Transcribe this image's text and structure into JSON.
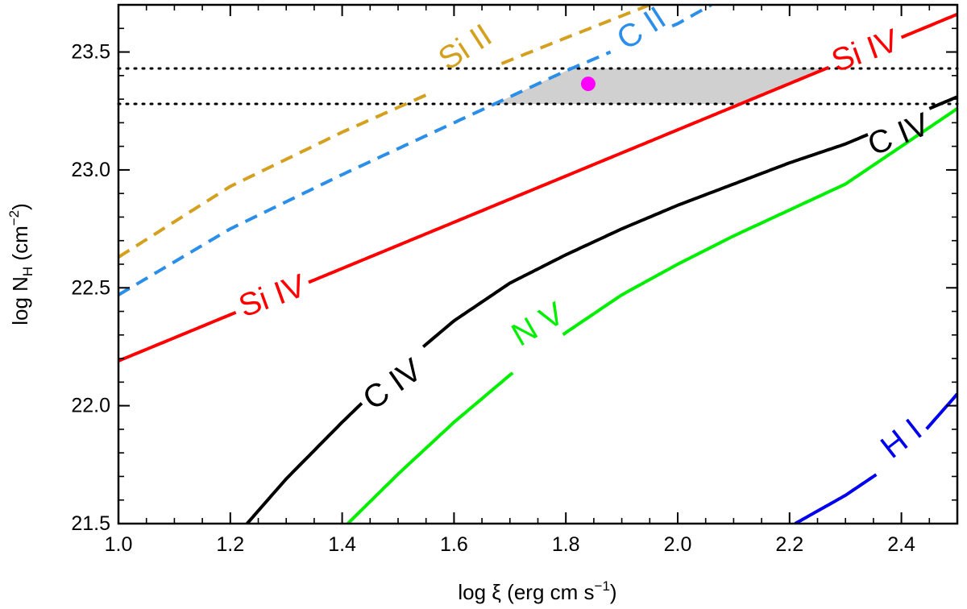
{
  "chart_data": {
    "type": "line",
    "xlabel": "log ξ (erg cm s",
    "xlabel_sup": "−1",
    "xlabel_end": ")",
    "ylabel_main": "log N",
    "ylabel_sub": "H",
    "ylabel_mid": " (cm",
    "ylabel_sup": "−2",
    "ylabel_end": ")",
    "xlim": [
      1.0,
      2.5
    ],
    "ylim": [
      21.5,
      23.7
    ],
    "x_ticks": [
      1.0,
      1.2,
      1.4,
      1.6,
      1.8,
      2.0,
      2.2,
      2.4
    ],
    "x_tick_labels": [
      "1.0",
      "1.2",
      "1.4",
      "1.6",
      "1.8",
      "2.0",
      "2.2",
      "2.4"
    ],
    "y_ticks": [
      21.5,
      22.0,
      22.5,
      23.0,
      23.5
    ],
    "y_tick_labels": [
      "21.5",
      "22.0",
      "22.5",
      "23.0",
      "23.5"
    ],
    "x_minor_step": 0.05,
    "y_minor_step": 0.1,
    "band": {
      "ymin": 23.28,
      "ymax": 23.43,
      "color": "#d0d0d0"
    },
    "series": [
      {
        "name": "Si II",
        "style": "dashed",
        "color": "#d4a020",
        "x": [
          1.0,
          1.2,
          1.4,
          1.6,
          1.8,
          1.95
        ],
        "y": [
          22.63,
          22.93,
          23.16,
          23.37,
          23.56,
          23.7
        ]
      },
      {
        "name": "C II",
        "style": "dashed",
        "color": "#2b8ee8",
        "x": [
          1.0,
          1.2,
          1.4,
          1.6,
          1.8,
          2.0,
          2.06
        ],
        "y": [
          22.47,
          22.75,
          22.98,
          23.2,
          23.42,
          23.62,
          23.7
        ]
      },
      {
        "name": "Si IV",
        "style": "solid",
        "color": "#ff0000",
        "x": [
          1.0,
          1.5,
          2.0,
          2.5
        ],
        "y": [
          22.19,
          22.68,
          23.17,
          23.66
        ]
      },
      {
        "name": "C IV",
        "style": "solid",
        "color": "#000000",
        "x": [
          1.23,
          1.3,
          1.4,
          1.5,
          1.6,
          1.7,
          1.8,
          1.9,
          2.0,
          2.1,
          2.2,
          2.3,
          2.4,
          2.5
        ],
        "y": [
          21.5,
          21.69,
          21.93,
          22.16,
          22.36,
          22.52,
          22.64,
          22.75,
          22.85,
          22.94,
          23.03,
          23.11,
          23.21,
          23.31
        ]
      },
      {
        "name": "N V",
        "style": "solid",
        "color": "#00ee00",
        "x": [
          1.41,
          1.5,
          1.6,
          1.7,
          1.8,
          1.9,
          2.0,
          2.1,
          2.2,
          2.3,
          2.4,
          2.5
        ],
        "y": [
          21.5,
          21.71,
          21.93,
          22.13,
          22.31,
          22.47,
          22.6,
          22.72,
          22.83,
          22.94,
          23.1,
          23.26
        ]
      },
      {
        "name": "H I",
        "style": "solid",
        "color": "#0000ee",
        "x": [
          2.21,
          2.3,
          2.4,
          2.5
        ],
        "y": [
          21.5,
          21.62,
          21.78,
          22.05
        ]
      }
    ],
    "labels": [
      {
        "text": "Si II",
        "x": 1.62,
        "y": 23.52,
        "angle": -33,
        "color": "#d4a020"
      },
      {
        "text": "C II",
        "x": 1.935,
        "y": 23.6,
        "angle": -33,
        "color": "#2b8ee8"
      },
      {
        "text": "Si IV",
        "x": 1.275,
        "y": 22.465,
        "angle": -20,
        "color": "#ff0000"
      },
      {
        "text": "Si IV",
        "x": 2.335,
        "y": 23.505,
        "angle": -20,
        "color": "#ff0000"
      },
      {
        "text": "C IV",
        "x": 1.49,
        "y": 22.09,
        "angle": -35,
        "color": "#000000"
      },
      {
        "text": "C IV",
        "x": 2.395,
        "y": 23.15,
        "angle": -22,
        "color": "#000000"
      },
      {
        "text": "N V",
        "x": 1.75,
        "y": 22.345,
        "angle": -30,
        "color": "#00ee00"
      },
      {
        "text": "H I",
        "x": 2.4,
        "y": 21.86,
        "angle": -38,
        "color": "#0000ee"
      }
    ],
    "point": {
      "x": 1.84,
      "y": 23.365,
      "color": "#ff00ff"
    }
  }
}
